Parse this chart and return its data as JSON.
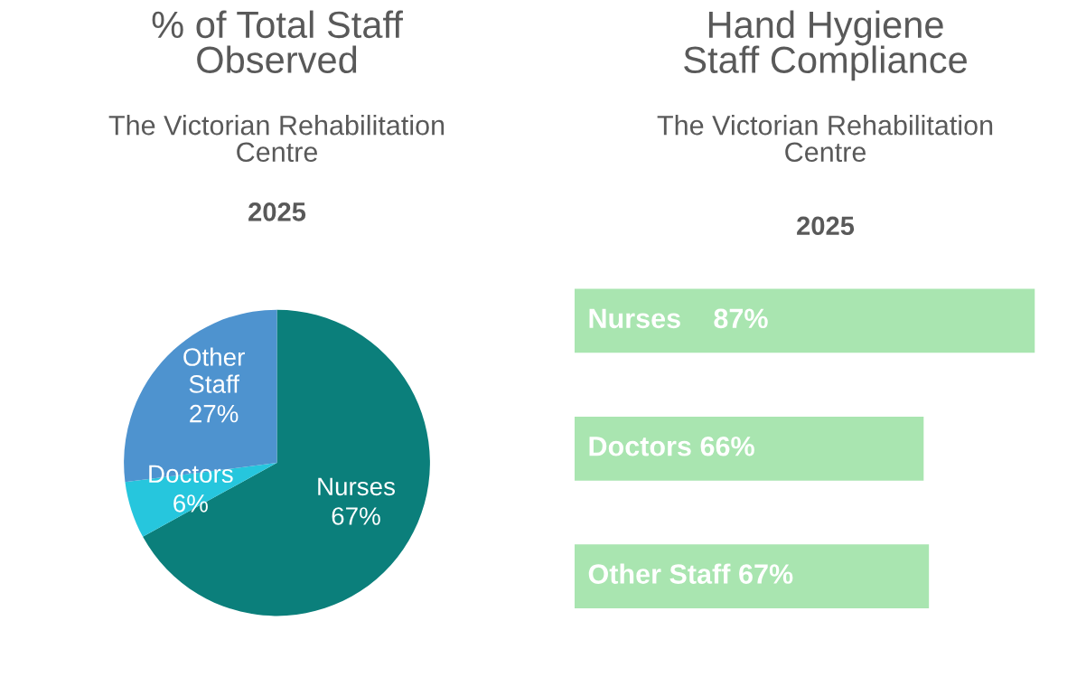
{
  "chart_data": [
    {
      "type": "pie",
      "title": "% of Total Staff\nObserved",
      "subtitle": "The Victorian Rehabilitation\nCentre",
      "annotations": [
        "2025"
      ],
      "categories": [
        "Nurses",
        "Doctors",
        "Other\nStaff"
      ],
      "values": [
        67,
        6,
        27
      ],
      "value_labels": [
        "67%",
        "6%",
        "27%"
      ],
      "colors": [
        "#0b7f7b",
        "#26c6dd",
        "#4e93cf"
      ]
    },
    {
      "type": "bar",
      "orientation": "horizontal",
      "title": "Hand Hygiene\nStaff Compliance",
      "subtitle": "The Victorian Rehabilitation\nCentre",
      "annotations": [
        "2025"
      ],
      "categories": [
        "Nurses",
        "Doctors",
        "Other Staff"
      ],
      "values": [
        87,
        66,
        67
      ],
      "value_labels": [
        "87%",
        "66%",
        "67%"
      ],
      "color": "#a9e5b0",
      "tick_labels": false
    }
  ]
}
